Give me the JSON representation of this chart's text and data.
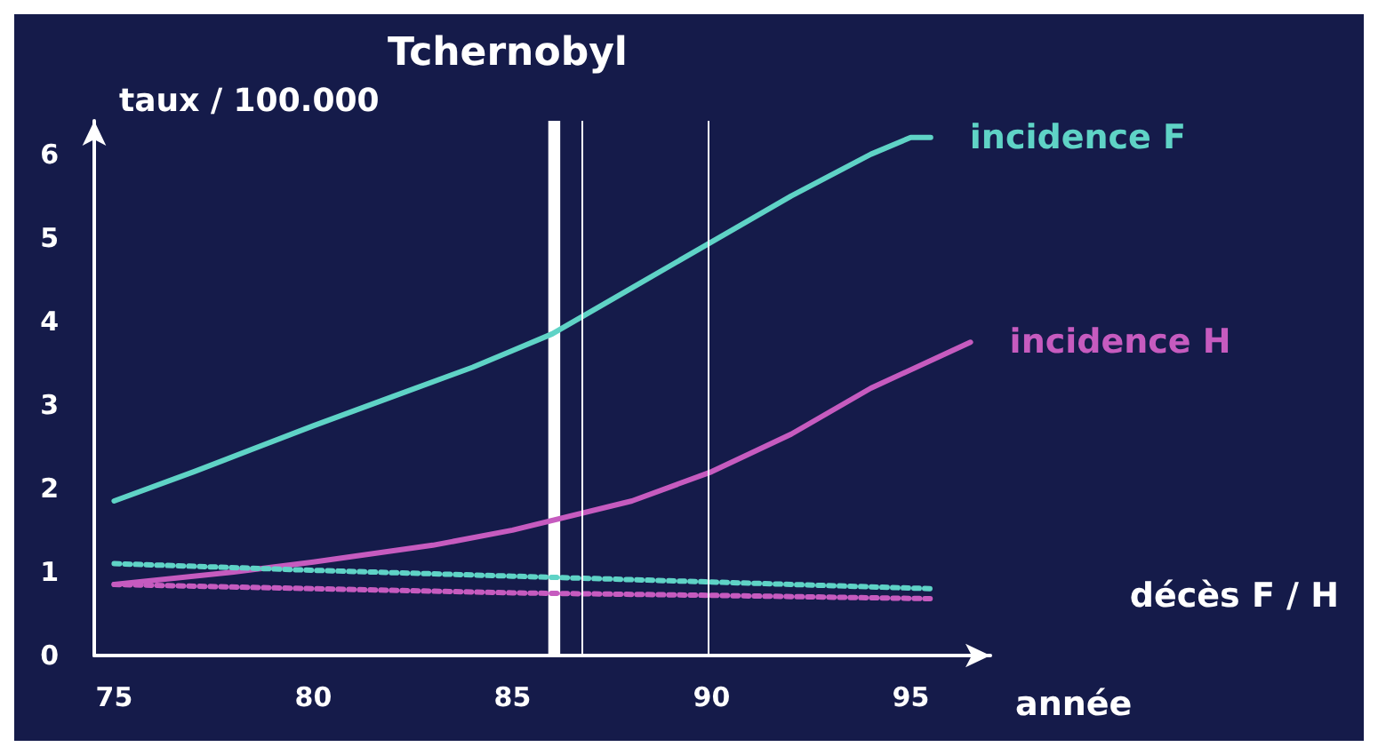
{
  "chart_data": {
    "type": "line",
    "title": "Tchernobyl",
    "ylabel": "taux / 100.000",
    "xlabel": "année",
    "xlim": [
      74.5,
      97
    ],
    "xticks": [
      75,
      80,
      85,
      90,
      95
    ],
    "ylim": [
      0,
      6.4
    ],
    "yticks": [
      0,
      1,
      2,
      3,
      4,
      5,
      6
    ],
    "grid": false,
    "legend": false,
    "marker": "none",
    "series": [
      {
        "name": "incidence F",
        "color": "#5fd3c6",
        "line_style": "solid",
        "x": [
          75,
          77,
          80,
          82,
          84,
          85,
          86,
          88,
          90,
          92,
          94,
          95,
          95.5
        ],
        "values": [
          1.85,
          2.2,
          2.75,
          3.1,
          3.45,
          3.65,
          3.85,
          4.4,
          4.95,
          5.5,
          6.0,
          6.2,
          6.2
        ]
      },
      {
        "name": "incidence H",
        "color": "#c65bbf",
        "line_style": "solid",
        "x": [
          75,
          78,
          80,
          83,
          85,
          88,
          90,
          92,
          94,
          96.5
        ],
        "values": [
          0.85,
          1.0,
          1.12,
          1.32,
          1.5,
          1.85,
          2.2,
          2.65,
          3.2,
          3.75
        ]
      },
      {
        "color": "#5fd3c6",
        "line_style": "dotted",
        "x": [
          75,
          80,
          85,
          90,
          95.5
        ],
        "values": [
          1.1,
          1.02,
          0.95,
          0.88,
          0.8
        ]
      },
      {
        "color": "#c65bbf",
        "line_style": "dotted",
        "x": [
          75,
          80,
          85,
          90,
          95.5
        ],
        "values": [
          0.85,
          0.8,
          0.75,
          0.72,
          0.68
        ]
      }
    ],
    "bands": [
      {
        "axis": "x",
        "from": 85.9,
        "to": 86.2,
        "color": "#ffffff"
      }
    ],
    "ref_lines": [
      {
        "axis": "x",
        "value": 86.75,
        "color": "#ffffff"
      },
      {
        "axis": "x",
        "value": 89.9,
        "color": "#ffffff"
      }
    ],
    "annotations": [
      "décès F / H"
    ]
  }
}
